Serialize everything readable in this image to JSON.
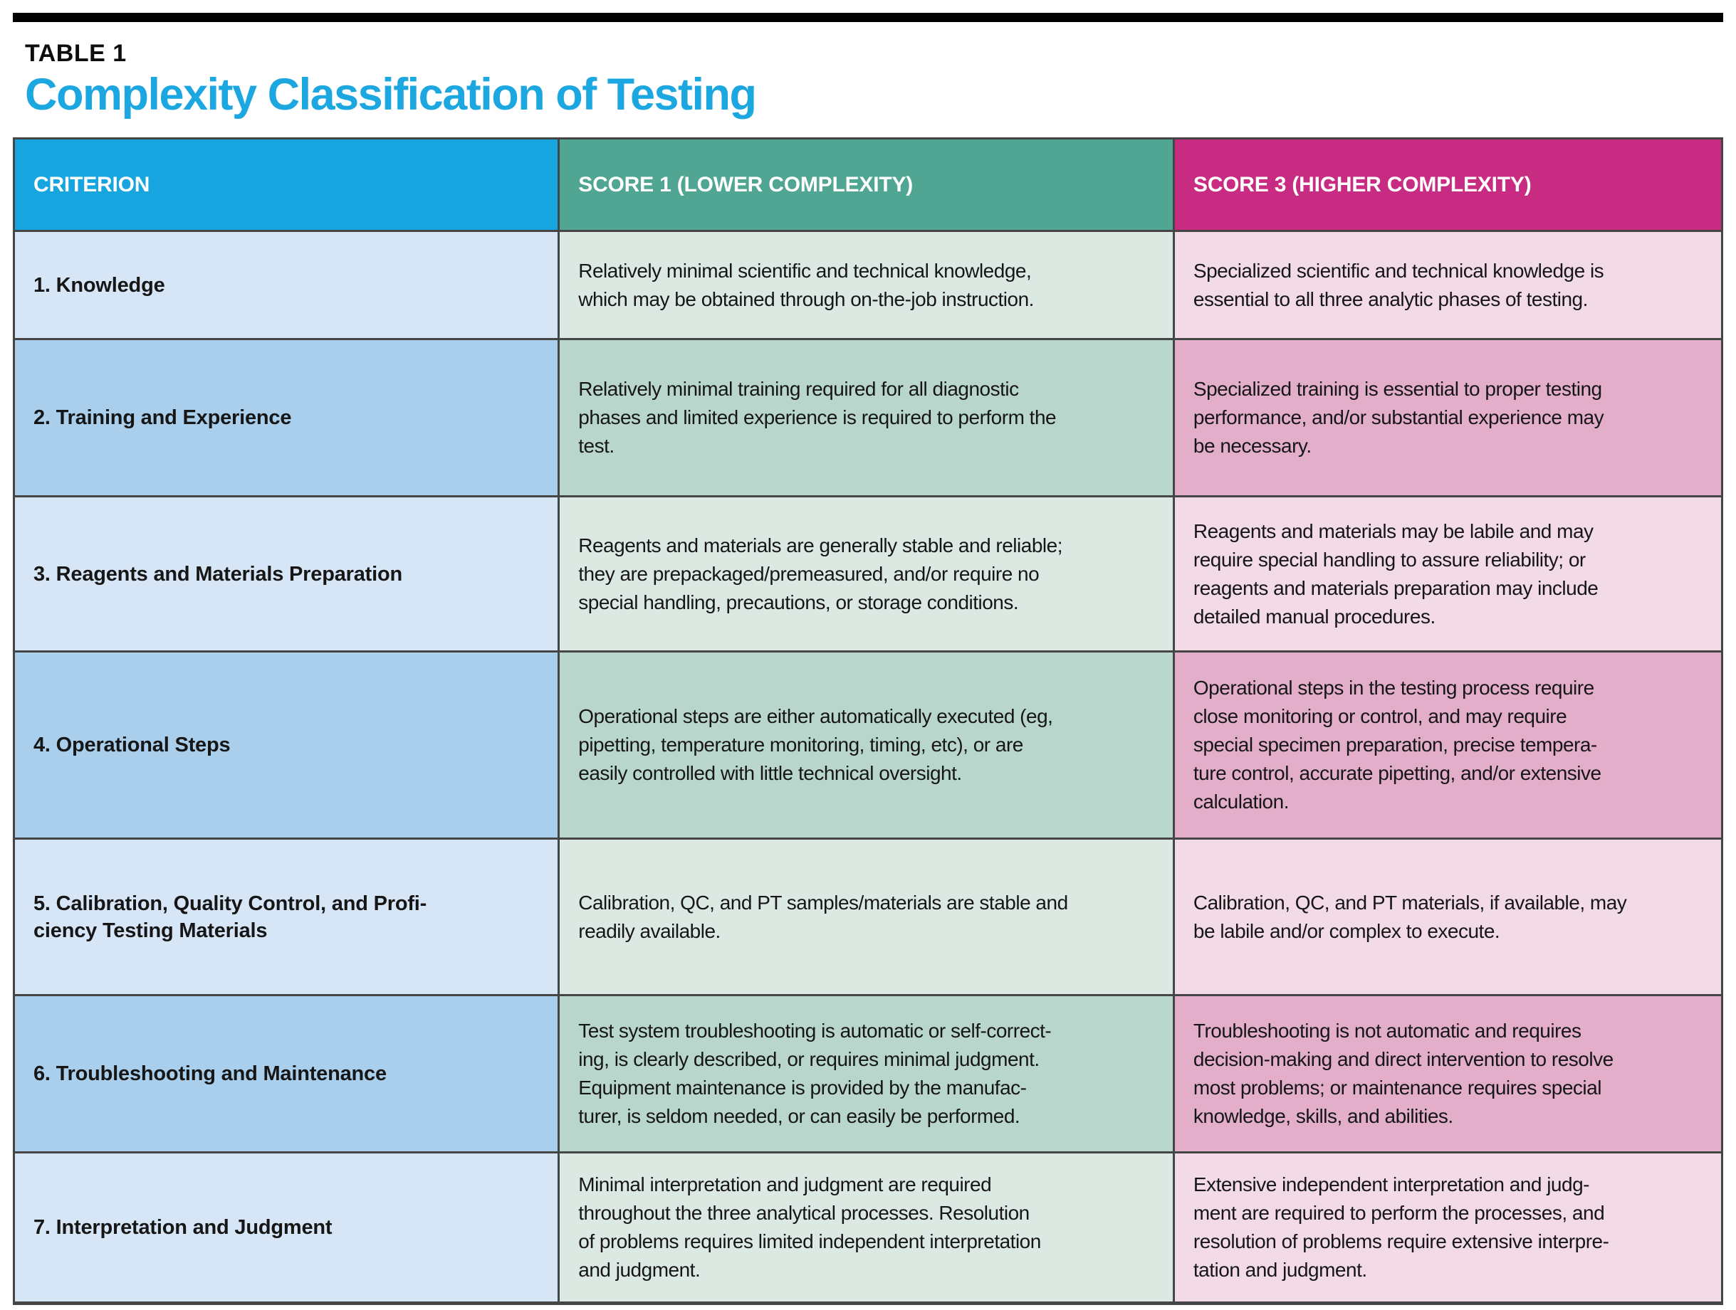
{
  "page": {
    "eyebrow": "TABLE 1",
    "title": "Complexity Classification of Testing"
  },
  "colors": {
    "title-accent": "#1ca7e0",
    "border": "#454545",
    "header-criterion": "#16a5de",
    "header-score1": "#50a692",
    "header-score3": "#c72c82",
    "row-criterion-light": "#d7e6f6",
    "row-criterion-dark": "#a9cfec",
    "row-score1-light": "#dce9e3",
    "row-score1-dark": "#b8d6cc",
    "row-score3-light": "#f2dae7",
    "row-score3-dark": "#e2aeca"
  },
  "table": {
    "columns": [
      {
        "key": "criterion",
        "label": "CRITERION"
      },
      {
        "key": "score1",
        "label": "SCORE 1 (LOWER COMPLEXITY)"
      },
      {
        "key": "score3",
        "label": "SCORE 3 (HIGHER COMPLEXITY)"
      }
    ],
    "rows": [
      {
        "criterion": "1. Knowledge",
        "score1": "Relatively minimal scientific and technical knowledge,\nwhich may be obtained through on-the-job instruction.",
        "score3": "Specialized scientific and technical knowledge is\nessential to all three analytic phases of testing."
      },
      {
        "criterion": "2. Training and Experience",
        "score1": "Relatively minimal training required for all diagnostic\nphases and limited experience is required to perform the\ntest.",
        "score3": "Specialized training is essential to proper testing\nperformance, and/or substantial experience may\nbe necessary."
      },
      {
        "criterion": "3. Reagents and Materials Preparation",
        "score1": "Reagents and materials are generally stable and reliable;\nthey are prepackaged/premeasured, and/or require no\nspecial handling, precautions, or storage conditions.",
        "score3": "Reagents and materials may be labile and may\nrequire special handling to assure reliability; or\nreagents and materials preparation may include\ndetailed manual procedures."
      },
      {
        "criterion": "4. Operational Steps",
        "score1": "Operational steps are either automatically executed (eg,\npipetting, temperature monitoring, timing, etc), or are\neasily controlled with little technical oversight.",
        "score3": "Operational steps in the testing process require\nclose monitoring or control, and may require\nspecial specimen preparation, precise tempera-\nture control, accurate pipetting, and/or extensive\ncalculation."
      },
      {
        "criterion": "5. Calibration, Quality Control, and Profi-\nciency Testing Materials",
        "score1": "Calibration, QC, and PT samples/materials are stable and\nreadily available.",
        "score3": "Calibration, QC, and PT materials, if available, may\nbe labile and/or complex to execute."
      },
      {
        "criterion": "6. Troubleshooting and Maintenance",
        "score1": "Test system troubleshooting is automatic or self-correct-\ning, is clearly described, or requires minimal judgment.\nEquipment maintenance is provided by the manufac-\nturer, is seldom needed, or can easily be performed.",
        "score3": "Troubleshooting is not automatic and requires\ndecision-making and direct intervention to resolve\nmost problems; or maintenance requires special\nknowledge, skills, and abilities."
      },
      {
        "criterion": "7. Interpretation and Judgment",
        "score1": "Minimal interpretation and judgment are required\nthroughout the three analytical processes. Resolution\nof problems requires limited independent interpretation\nand judgment.",
        "score3": "Extensive independent interpretation and judg-\nment are required to perform the processes, and\nresolution of problems require extensive interpre-\ntation and judgment."
      }
    ]
  }
}
